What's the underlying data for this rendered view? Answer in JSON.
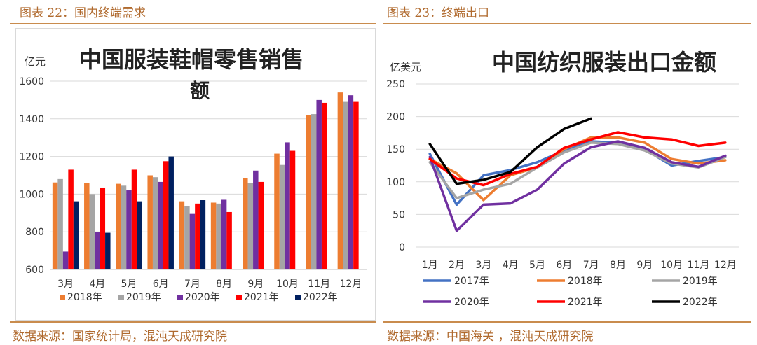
{
  "left": {
    "figure_title": "图表 22：国内终端需求",
    "source": "数据来源：国家统计局，混沌天成研究院"
  },
  "right": {
    "figure_title": "图表 23：终端出口",
    "source": "数据来源：中国海关 ，混沌天成研究院"
  },
  "chart_data": [
    {
      "type": "bar",
      "title_line1": "中国服装鞋帽零售销售",
      "title_line2": "额",
      "ylabel": "亿元",
      "ylim": [
        600,
        1600
      ],
      "yticks": [
        600,
        800,
        1000,
        1200,
        1400,
        1600
      ],
      "grid": true,
      "legend_position": "bottom",
      "categories": [
        "3月",
        "4月",
        "5月",
        "6月",
        "7月",
        "8月",
        "9月",
        "10月",
        "11月",
        "12月"
      ],
      "series": [
        {
          "name": "2018年",
          "color": "#ed7d31",
          "values": [
            1062,
            1058,
            1055,
            1100,
            962,
            955,
            1085,
            1215,
            1418,
            1540
          ]
        },
        {
          "name": "2019年",
          "color": "#a5a5a5",
          "values": [
            1080,
            1000,
            1045,
            1090,
            935,
            950,
            1060,
            1155,
            1425,
            1490
          ]
        },
        {
          "name": "2020年",
          "color": "#7030a0",
          "values": [
            695,
            800,
            1020,
            1065,
            895,
            970,
            1125,
            1275,
            1500,
            1525
          ]
        },
        {
          "name": "2021年",
          "color": "#ff0000",
          "values": [
            1130,
            1035,
            1130,
            1175,
            950,
            905,
            1065,
            1230,
            1485,
            1490
          ]
        },
        {
          "name": "2022年",
          "color": "#002060",
          "values": [
            962,
            795,
            962,
            1200,
            968,
            null,
            null,
            null,
            null,
            null
          ]
        }
      ]
    },
    {
      "type": "line",
      "title": "中国纺织服装出口金额",
      "ylabel": "亿美元",
      "ylim": [
        0,
        250
      ],
      "yticks": [
        0,
        50,
        100,
        150,
        200,
        250
      ],
      "grid": true,
      "legend_position": "bottom",
      "categories": [
        "1月",
        "2月",
        "3月",
        "4月",
        "5月",
        "6月",
        "7月",
        "8月",
        "9月",
        "10月",
        "11月",
        "12月"
      ],
      "series": [
        {
          "name": "2017年",
          "color": "#4472c4",
          "values": [
            143,
            65,
            110,
            118,
            130,
            148,
            162,
            160,
            150,
            125,
            132,
            138
          ]
        },
        {
          "name": "2018年",
          "color": "#ed7d31",
          "values": [
            135,
            113,
            72,
            110,
            122,
            150,
            168,
            168,
            160,
            135,
            128,
            133
          ]
        },
        {
          "name": "2019年",
          "color": "#a5a5a5",
          "values": [
            130,
            75,
            88,
            97,
            122,
            145,
            160,
            158,
            148,
            128,
            122,
            138
          ]
        },
        {
          "name": "2020年",
          "color": "#7030a0",
          "values": [
            138,
            25,
            65,
            67,
            88,
            128,
            153,
            162,
            152,
            130,
            123,
            140
          ]
        },
        {
          "name": "2021年",
          "color": "#ff0000",
          "values": [
            135,
            105,
            95,
            112,
            123,
            152,
            165,
            176,
            168,
            165,
            155,
            160
          ]
        },
        {
          "name": "2022年",
          "color": "#000000",
          "values": [
            158,
            97,
            103,
            115,
            153,
            181,
            197,
            null,
            null,
            null,
            null,
            null
          ]
        }
      ]
    }
  ]
}
